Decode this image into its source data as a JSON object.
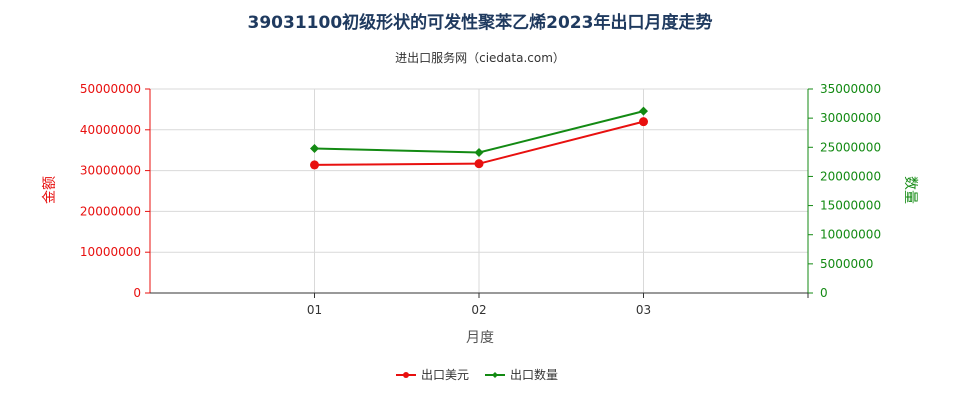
{
  "chart_data": {
    "type": "line",
    "title": "39031100初级形状的可发性聚苯乙烯2023年出口月度走势",
    "subtitle": "进出口服务网（ciedata.com）",
    "xlabel": "月度",
    "ylabel_left": "金额",
    "ylabel_right": "数量",
    "categories": [
      "01",
      "02",
      "03"
    ],
    "ylim_left": [
      0,
      50000000
    ],
    "ylim_right": [
      0,
      35000000
    ],
    "yticks_left": [
      "0",
      "10000000",
      "20000000",
      "30000000",
      "40000000",
      "50000000"
    ],
    "yticks_right": [
      "0",
      "5000000",
      "10000000",
      "15000000",
      "20000000",
      "25000000",
      "30000000",
      "35000000"
    ],
    "grid": true,
    "legend_position": "bottom",
    "series": [
      {
        "name": "出口美元",
        "axis": "left",
        "color": "#e8100f",
        "marker": "circle",
        "values": [
          31400000,
          31700000,
          42000000
        ]
      },
      {
        "name": "出口数量",
        "axis": "right",
        "color": "#138a13",
        "marker": "diamond",
        "values": [
          24800000,
          24100000,
          31200000
        ]
      }
    ],
    "colors": {
      "left_axis": "#e8100f",
      "right_axis": "#138a13",
      "grid": "#d9d9d9",
      "title": "#1f3a5f"
    }
  }
}
